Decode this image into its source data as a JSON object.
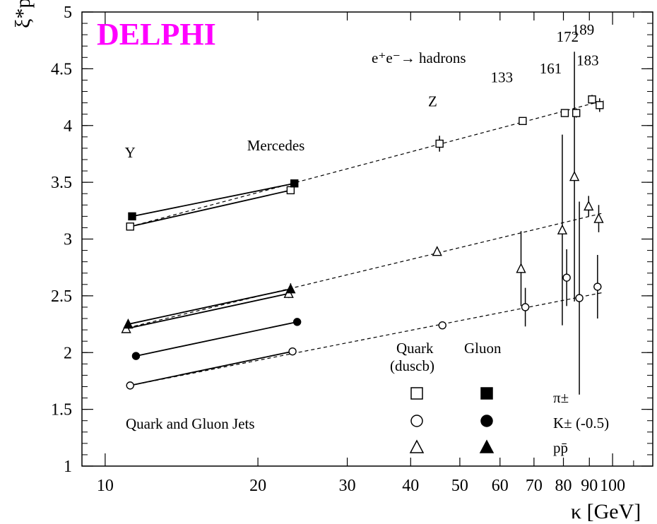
{
  "chart_data": {
    "type": "scatter",
    "brand_label": "DELPHI",
    "brand_color": "#ff00ff",
    "process_label": "e⁺e⁻→ hadrons",
    "corner_label": "Quark and Gluon Jets",
    "xlabel": "κ [GeV]",
    "ylabel": "ξ*p",
    "x_scale": "log",
    "xlim": [
      9,
      120
    ],
    "ylim": [
      1,
      5
    ],
    "x_ticks": [
      10,
      20,
      30,
      40,
      50,
      60,
      70,
      80,
      90,
      100
    ],
    "x_tick_labels": [
      "10",
      "20",
      "30",
      "40",
      "50",
      "60",
      "70",
      "80",
      "90",
      "100"
    ],
    "y_ticks": [
      1,
      1.5,
      2,
      2.5,
      3,
      3.5,
      4,
      4.5,
      5
    ],
    "y_tick_labels": [
      "1",
      "1.5",
      "2",
      "2.5",
      "3",
      "3.5",
      "4",
      "4.5",
      "5"
    ],
    "energy_labels": [
      {
        "text": "Y",
        "x": 11.2,
        "y": 3.72
      },
      {
        "text": "Mercedes",
        "x": 21.7,
        "y": 3.78
      },
      {
        "text": "Z",
        "x": 44.2,
        "y": 4.17
      },
      {
        "text": "133",
        "x": 60.5,
        "y": 4.38
      },
      {
        "text": "161",
        "x": 75.5,
        "y": 4.46
      },
      {
        "text": "172",
        "x": 81.5,
        "y": 4.74
      },
      {
        "text": "189",
        "x": 87.5,
        "y": 4.8
      },
      {
        "text": "183",
        "x": 89.3,
        "y": 4.53
      }
    ],
    "legend": {
      "columns": [
        "Quark",
        "Gluon"
      ],
      "quark_sub": "(duscb)",
      "rows": [
        "π±",
        "K±  (-0.5)",
        "pp̄"
      ]
    },
    "series": [
      {
        "name": "π± quark",
        "marker": "square-open",
        "points": [
          {
            "x": 11.2,
            "y": 3.11,
            "err": 0.02
          },
          {
            "x": 23.2,
            "y": 3.43,
            "err": 0.02
          },
          {
            "x": 45.6,
            "y": 3.84,
            "err": 0.07
          },
          {
            "x": 66.5,
            "y": 4.04,
            "err": 0.02
          },
          {
            "x": 80.5,
            "y": 4.11,
            "err": 0.03
          },
          {
            "x": 84.8,
            "y": 4.11,
            "err": 0.04
          },
          {
            "x": 91.1,
            "y": 4.23,
            "err": 0.04
          },
          {
            "x": 94.3,
            "y": 4.18,
            "err": 0.06
          }
        ]
      },
      {
        "name": "π± gluon",
        "marker": "square-filled",
        "points": [
          {
            "x": 11.3,
            "y": 3.2,
            "err": 0.02
          },
          {
            "x": 23.6,
            "y": 3.49,
            "err": 0.02
          }
        ]
      },
      {
        "name": "K± quark",
        "marker": "circle-open",
        "points": [
          {
            "x": 11.2,
            "y": 1.71,
            "err": 0.02
          },
          {
            "x": 23.4,
            "y": 2.01,
            "err": 0.02
          },
          {
            "x": 46.2,
            "y": 2.24,
            "err": 0.02
          },
          {
            "x": 67.3,
            "y": 2.4,
            "err": 0.17
          },
          {
            "x": 81.2,
            "y": 2.66,
            "err": 0.25
          },
          {
            "x": 86.0,
            "y": 2.48,
            "err": 0.85
          },
          {
            "x": 93.4,
            "y": 2.58,
            "err": 0.28
          }
        ]
      },
      {
        "name": "K± gluon",
        "marker": "circle-filled",
        "points": [
          {
            "x": 11.5,
            "y": 1.97,
            "err": 0.02
          },
          {
            "x": 23.9,
            "y": 2.27,
            "err": 0.03
          }
        ]
      },
      {
        "name": "pp̄ quark",
        "marker": "triangle-open",
        "points": [
          {
            "x": 11.0,
            "y": 2.21,
            "err": 0.02
          },
          {
            "x": 23.0,
            "y": 2.52,
            "err": 0.04
          },
          {
            "x": 45.1,
            "y": 2.89,
            "err": 0.02
          },
          {
            "x": 66.0,
            "y": 2.74,
            "err": 0.33
          },
          {
            "x": 79.6,
            "y": 3.08,
            "err": 0.84
          },
          {
            "x": 84.1,
            "y": 3.55,
            "err": 1.1
          },
          {
            "x": 89.7,
            "y": 3.29,
            "err": 0.09
          },
          {
            "x": 93.9,
            "y": 3.18,
            "err": 0.12
          }
        ]
      },
      {
        "name": "pp̄ gluon",
        "marker": "triangle-filled",
        "points": [
          {
            "x": 11.1,
            "y": 2.25,
            "err": 0.02
          },
          {
            "x": 23.2,
            "y": 2.56,
            "err": 0.05
          }
        ]
      }
    ],
    "solid_lines": [
      [
        [
          11.3,
          3.2
        ],
        [
          23.6,
          3.49
        ]
      ],
      [
        [
          11.2,
          3.11
        ],
        [
          23.2,
          3.43
        ]
      ],
      [
        [
          11.1,
          2.25
        ],
        [
          23.2,
          2.56
        ]
      ],
      [
        [
          11.0,
          2.21
        ],
        [
          23.0,
          2.52
        ]
      ],
      [
        [
          11.5,
          1.97
        ],
        [
          23.9,
          2.27
        ]
      ],
      [
        [
          11.2,
          1.71
        ],
        [
          23.4,
          2.01
        ]
      ]
    ],
    "dashed_lines": [
      [
        [
          11.2,
          3.11
        ],
        [
          96.0,
          4.22
        ]
      ],
      [
        [
          11.1,
          2.22
        ],
        [
          96.0,
          3.23
        ]
      ],
      [
        [
          11.2,
          1.71
        ],
        [
          96.0,
          2.53
        ]
      ]
    ]
  }
}
